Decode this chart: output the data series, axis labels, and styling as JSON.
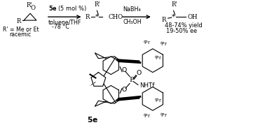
{
  "bg_color": "#ffffff",
  "fig_width": 3.78,
  "fig_height": 1.89,
  "dpi": 100,
  "scheme": {
    "arrow1_bold": "5e",
    "arrow1_text": " (5 mol %)",
    "arrow1_line1": "toluene/THF",
    "arrow1_line2": "-78 °C",
    "arrow2_line1": "NaBH₄",
    "arrow2_line2": "CH₃OH",
    "sub1": "R’ = Me or Et",
    "sub2": "racemic",
    "yield_text": "48-74% yield",
    "ee_text": "19-50% ee",
    "catalyst_label": "5e"
  }
}
